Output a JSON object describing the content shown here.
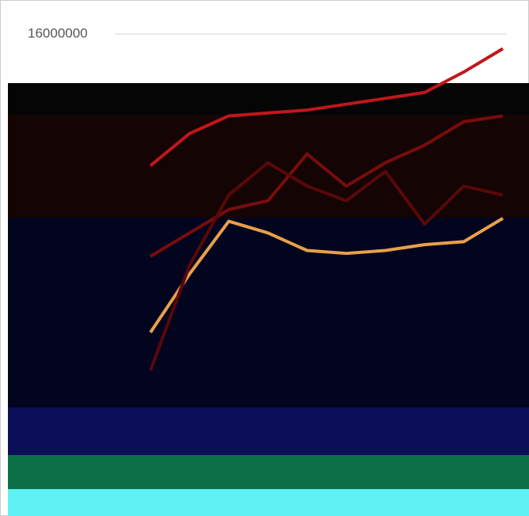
{
  "chart_data": {
    "type": "line",
    "categories": [
      null,
      null,
      null,
      null,
      null,
      null,
      null,
      null,
      null,
      null
    ],
    "series": [
      {
        "color": "#c0171b",
        "values": [
          11500000,
          12600000,
          13200000,
          13300000,
          13400000,
          13600000,
          13800000,
          14000000,
          14700000,
          15500000
        ]
      },
      {
        "color": "#7a0c0c",
        "values": [
          8400000,
          9200000,
          10000000,
          10300000,
          11900000,
          10800000,
          11600000,
          12200000,
          13000000,
          13200000
        ]
      },
      {
        "color": "#e8a04a",
        "values": [
          5800000,
          7800000,
          9600000,
          9200000,
          8600000,
          8500000,
          8600000,
          8800000,
          8900000,
          9700000
        ]
      },
      {
        "color": "#5a0808",
        "values": [
          4500000,
          8100000,
          10500000,
          11600000,
          10800000,
          10300000,
          11300000,
          9500000,
          10800000,
          10500000
        ]
      }
    ],
    "ylim": [
      3500000,
      16500000
    ],
    "yticks": [
      16000000
    ],
    "grid": true
  }
}
